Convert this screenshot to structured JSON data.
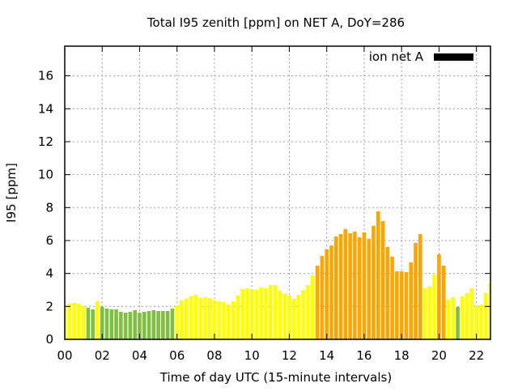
{
  "chart_data": {
    "type": "bar",
    "title": "Total I95 zenith [ppm] on NET A, DoY=286",
    "xlabel": "Time of day UTC (15-minute intervals)",
    "ylabel": "I95 [ppm]",
    "xlim": [
      0,
      22.75
    ],
    "ylim": [
      0,
      17.8
    ],
    "grid": true,
    "legend": {
      "placement": "top-right",
      "entries": [
        {
          "name": "ion net A",
          "color": "#000000"
        }
      ]
    },
    "x_ticks": [
      0,
      2,
      4,
      6,
      8,
      10,
      12,
      14,
      16,
      18,
      20,
      22
    ],
    "x_tick_labels": [
      "00",
      "02",
      "04",
      "06",
      "08",
      "10",
      "12",
      "14",
      "16",
      "18",
      "20",
      "22"
    ],
    "y_ticks": [
      0,
      2,
      4,
      6,
      8,
      10,
      12,
      14,
      16
    ],
    "y_tick_labels": [
      "0",
      "2",
      "4",
      "6",
      "8",
      "10",
      "12",
      "14",
      "16"
    ],
    "bar_interval_hours": 0.25,
    "colors": {
      "G": "#80c040",
      "Y": "#ffff00",
      "O": "#ffa500"
    },
    "values": [
      2.05,
      2.16,
      2.21,
      2.16,
      2.03,
      1.92,
      1.82,
      2.31,
      1.98,
      1.87,
      1.82,
      1.82,
      1.67,
      1.62,
      1.67,
      1.77,
      1.62,
      1.67,
      1.72,
      1.77,
      1.72,
      1.72,
      1.72,
      1.87,
      2.07,
      2.36,
      2.46,
      2.61,
      2.7,
      2.51,
      2.56,
      2.51,
      2.36,
      2.31,
      2.26,
      2.11,
      2.31,
      2.66,
      3.05,
      3.1,
      3.0,
      3.0,
      3.15,
      3.1,
      3.3,
      3.3,
      2.95,
      2.75,
      2.66,
      2.46,
      2.7,
      3.0,
      3.3,
      3.89,
      4.48,
      5.07,
      5.46,
      5.7,
      6.25,
      6.39,
      6.69,
      6.44,
      6.54,
      6.2,
      6.49,
      6.1,
      6.89,
      7.77,
      7.18,
      5.61,
      5.02,
      4.13,
      4.13,
      4.08,
      4.67,
      5.85,
      6.39,
      3.1,
      3.2,
      3.93,
      5.16,
      4.48,
      2.41,
      2.56,
      1.97,
      2.61,
      2.8,
      3.1,
      2.03,
      2.11,
      2.8,
      3.44
    ],
    "bar_colors": "YYYYYGGYGGGGGGGGGGGGGGGGYYYYYYYYYYYYYYYYYYYYYYYYYYYYYYOOOOOOOOOOOOOOOOOOOOOOOYYYOOYYGYYYYYYY"
  }
}
